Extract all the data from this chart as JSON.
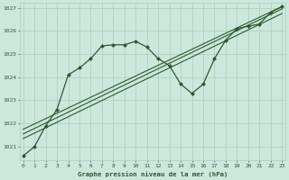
{
  "bg_color": "#cce8dd",
  "grid_color": "#aaccbb",
  "line_color": "#2d5a2d",
  "marker_color": "#2d5a2d",
  "title": "Graphe pression niveau de la mer (hPa)",
  "title_color": "#2d5a2d",
  "xlim": [
    -0.3,
    23.3
  ],
  "ylim": [
    1020.4,
    1027.2
  ],
  "yticks": [
    1021,
    1022,
    1023,
    1024,
    1025,
    1026,
    1027
  ],
  "xticks": [
    0,
    1,
    2,
    3,
    4,
    5,
    6,
    7,
    8,
    9,
    10,
    11,
    12,
    13,
    14,
    15,
    16,
    17,
    18,
    19,
    20,
    21,
    22,
    23
  ],
  "main_x": [
    0,
    1,
    2,
    3,
    4,
    5,
    6,
    7,
    8,
    9,
    10,
    11,
    12,
    13,
    14,
    15,
    16,
    17,
    18,
    19,
    20,
    21,
    22,
    23
  ],
  "main_y": [
    1020.6,
    1021.0,
    1021.9,
    1022.6,
    1024.1,
    1024.4,
    1024.8,
    1025.35,
    1025.4,
    1025.4,
    1025.55,
    1025.3,
    1024.8,
    1024.5,
    1023.7,
    1023.3,
    1023.7,
    1024.8,
    1025.6,
    1026.1,
    1026.2,
    1026.3,
    1026.8,
    1027.05
  ],
  "trend_lines": [
    {
      "x0": 0,
      "y0": 1021.35,
      "x1": 23,
      "y1": 1026.75
    },
    {
      "x0": 0,
      "y0": 1021.55,
      "x1": 23,
      "y1": 1026.95
    },
    {
      "x0": 0,
      "y0": 1021.75,
      "x1": 23,
      "y1": 1027.05
    }
  ]
}
